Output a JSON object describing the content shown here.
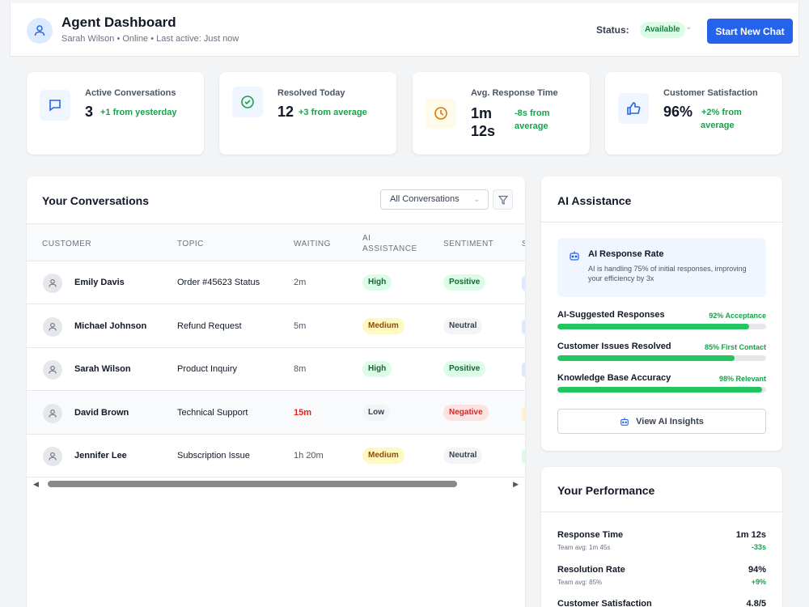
{
  "header": {
    "title": "Agent Dashboard",
    "subtitle": "Sarah Wilson • Online • Last active: Just now",
    "status_label": "Status:",
    "status_value": "Available",
    "new_chat_label": "Start New Chat"
  },
  "stats": [
    {
      "label": "Active Conversations",
      "value": "3",
      "change": "+1 from yesterday",
      "icon": "message-square-icon"
    },
    {
      "label": "Resolved Today",
      "value": "12",
      "change": "+3 from average",
      "icon": "check-circle-icon"
    },
    {
      "label": "Avg. Response Time",
      "value_line1": "1m",
      "value_line2": "12s",
      "change_line1": "-8s from",
      "change_line2": "average",
      "icon": "clock-icon"
    },
    {
      "label": "Customer Satisfaction",
      "value": "96%",
      "change_line1": "+2% from",
      "change_line2": "average",
      "icon": "thumbs-up-icon"
    }
  ],
  "conversations": {
    "title": "Your Conversations",
    "filter_value": "All Conversations",
    "columns": {
      "customer": "CUSTOMER",
      "topic": "TOPIC",
      "waiting": "WAITING",
      "ai_line1": "AI",
      "ai_line2": "ASSISTANCE",
      "sentiment": "SENTIMENT",
      "cut": "S"
    },
    "rows": [
      {
        "customer": "Emily Davis",
        "topic": "Order #45623 Status",
        "waiting": "2m",
        "ai": "High",
        "sentiment": "Positive",
        "edge_color": "#dbeafe"
      },
      {
        "customer": "Michael Johnson",
        "topic": "Refund Request",
        "waiting": "5m",
        "ai": "Medium",
        "sentiment": "Neutral",
        "edge_color": "#dbeafe"
      },
      {
        "customer": "Sarah Wilson",
        "topic": "Product Inquiry",
        "waiting": "8m",
        "ai": "High",
        "sentiment": "Positive",
        "edge_color": "#dbeafe"
      },
      {
        "customer": "David Brown",
        "topic": "Technical Support",
        "waiting": "15m",
        "ai": "Low",
        "sentiment": "Negative",
        "edge_color": "#fef3c7"
      },
      {
        "customer": "Jennifer Lee",
        "topic": "Subscription Issue",
        "waiting": "1h 20m",
        "ai": "Medium",
        "sentiment": "Neutral",
        "edge_color": "#dcfce7"
      }
    ]
  },
  "ai_assistance": {
    "title": "AI Assistance",
    "box_title": "AI Response Rate",
    "box_desc": "AI is handling 75% of initial responses, improving your efficiency by 3x",
    "metrics": [
      {
        "label": "AI-Suggested Responses",
        "note": "92% Acceptance",
        "percent": 92
      },
      {
        "label": "Customer Issues Resolved",
        "note": "85% First Contact",
        "percent": 85
      },
      {
        "label": "Knowledge Base Accuracy",
        "note": "98% Relevant",
        "percent": 98
      }
    ],
    "button_label": "View AI Insights"
  },
  "performance": {
    "title": "Your Performance",
    "items": [
      {
        "label": "Response Time",
        "team": "Team avg: 1m 45s",
        "value": "1m 12s",
        "delta": "-33s"
      },
      {
        "label": "Resolution Rate",
        "team": "Team avg: 85%",
        "value": "94%",
        "delta": "+9%"
      },
      {
        "label": "Customer Satisfaction",
        "value": "4.8/5"
      }
    ]
  },
  "colors": {
    "accent": "#2563eb",
    "success": "#16a34a",
    "danger": "#dc2626"
  }
}
